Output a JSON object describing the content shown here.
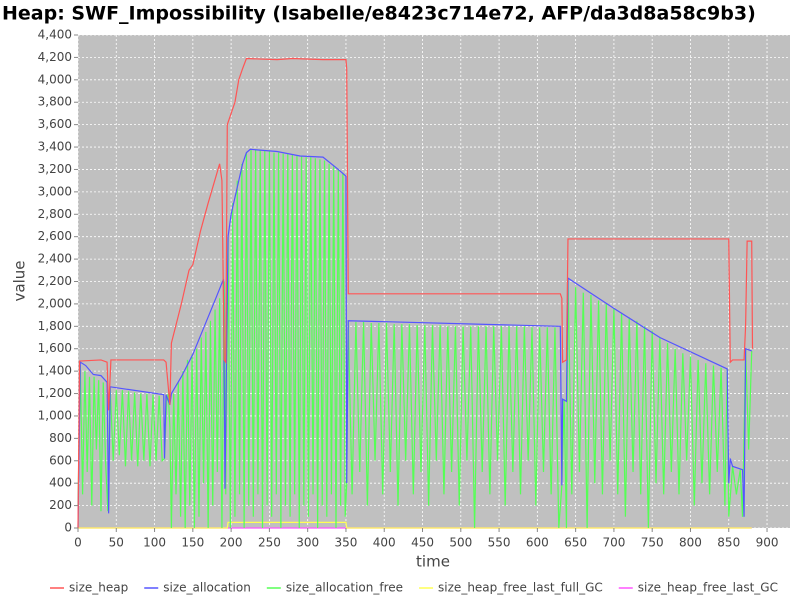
{
  "chart_data": {
    "type": "line",
    "title": "Heap: SWF_Impossibility (Isabelle/e8423c714e72, AFP/da3d8a58c9b3)",
    "x_label": "time",
    "y_label": "value",
    "xlim": [
      0,
      930
    ],
    "ylim": [
      0,
      4400
    ],
    "xticks": [
      0,
      50,
      100,
      150,
      200,
      250,
      300,
      350,
      400,
      450,
      500,
      550,
      600,
      650,
      700,
      750,
      800,
      850,
      900
    ],
    "yticks": [
      0,
      200,
      400,
      600,
      800,
      {
        "value": 1000,
        "label": "1,000"
      },
      {
        "value": 1200,
        "label": "1,200"
      },
      {
        "value": 1400,
        "label": "1,400"
      },
      {
        "value": 1600,
        "label": "1,600"
      },
      {
        "value": 1800,
        "label": "1,800"
      },
      {
        "value": 2000,
        "label": "2,000"
      },
      {
        "value": 2200,
        "label": "2,200"
      },
      {
        "value": 2400,
        "label": "2,400"
      },
      {
        "value": 2600,
        "label": "2,600"
      },
      {
        "value": 2800,
        "label": "2,800"
      },
      {
        "value": 3000,
        "label": "3,000"
      },
      {
        "value": 3200,
        "label": "3,200"
      },
      {
        "value": 3400,
        "label": "3,400"
      },
      {
        "value": 3600,
        "label": "3,600"
      },
      {
        "value": 3800,
        "label": "3,800"
      },
      {
        "value": 4000,
        "label": "4,000"
      },
      {
        "value": 4200,
        "label": "4,200"
      },
      {
        "value": 4400,
        "label": "4,400"
      }
    ],
    "grid": true,
    "legend": "bottom",
    "series": [
      {
        "name": "size_heap",
        "color": "#ff5555",
        "x": [
          0,
          2,
          30,
          38,
          40,
          43,
          112,
          115,
          120,
          122,
          135,
          145,
          150,
          160,
          170,
          185,
          188,
          191,
          193,
          195,
          200,
          205,
          210,
          215,
          220,
          260,
          280,
          320,
          350,
          351,
          353,
          630,
          632,
          633,
          638,
          640,
          850,
          852,
          855,
          870,
          872,
          874,
          880,
          881
        ],
        "values": [
          0,
          1490,
          1500,
          1480,
          1050,
          1500,
          1500,
          1480,
          1100,
          1650,
          2000,
          2300,
          2350,
          2650,
          2900,
          3250,
          3100,
          1500,
          1480,
          3600,
          3700,
          3800,
          4000,
          4100,
          4190,
          4180,
          4190,
          4180,
          4180,
          4100,
          2090,
          2090,
          2050,
          1480,
          1500,
          2580,
          2580,
          1480,
          1500,
          1500,
          1800,
          2560,
          2560,
          1600
        ]
      },
      {
        "name": "size_allocation",
        "color": "#5555ff",
        "x": [
          0,
          3,
          10,
          20,
          30,
          38,
          40,
          42,
          112,
          113,
          115,
          120,
          122,
          135,
          150,
          165,
          180,
          190,
          192,
          194,
          196,
          200,
          205,
          210,
          215,
          220,
          225,
          260,
          290,
          320,
          340,
          350,
          351,
          353,
          630,
          632,
          633,
          638,
          640,
          700,
          760,
          848,
          850,
          852,
          855,
          868,
          870,
          872,
          880
        ],
        "values": [
          0,
          1480,
          1450,
          1370,
          1360,
          1300,
          130,
          1260,
          1190,
          620,
          1190,
          1100,
          1200,
          1350,
          1550,
          1800,
          2050,
          2220,
          350,
          1500,
          2600,
          2800,
          2950,
          3100,
          3250,
          3350,
          3380,
          3360,
          3320,
          3310,
          3200,
          3140,
          400,
          1850,
          1800,
          380,
          1150,
          1130,
          2230,
          1960,
          1700,
          1420,
          400,
          620,
          550,
          520,
          100,
          1600,
          1580
        ]
      },
      {
        "name": "size_allocation_free",
        "color": "#55ff55",
        "x": [
          0,
          3,
          6,
          9,
          12,
          15,
          18,
          21,
          24,
          27,
          30,
          33,
          36,
          39,
          42,
          46,
          50,
          54,
          58,
          62,
          66,
          70,
          74,
          78,
          82,
          86,
          90,
          94,
          98,
          102,
          106,
          110,
          113,
          116,
          118,
          120,
          122,
          125,
          128,
          131,
          134,
          137,
          140,
          143,
          146,
          149,
          152,
          155,
          158,
          161,
          164,
          167,
          170,
          173,
          176,
          179,
          182,
          185,
          188,
          191,
          193,
          196,
          199,
          202,
          205,
          208,
          211,
          214,
          217,
          220,
          223,
          226,
          229,
          232,
          235,
          238,
          241,
          244,
          247,
          250,
          253,
          256,
          259,
          262,
          265,
          268,
          271,
          274,
          277,
          280,
          283,
          286,
          289,
          292,
          295,
          298,
          301,
          304,
          307,
          310,
          313,
          316,
          319,
          322,
          325,
          328,
          331,
          334,
          337,
          340,
          343,
          346,
          349,
          351,
          353,
          358,
          363,
          368,
          373,
          378,
          383,
          388,
          393,
          398,
          403,
          408,
          413,
          418,
          423,
          428,
          433,
          438,
          443,
          448,
          453,
          458,
          463,
          468,
          473,
          478,
          483,
          488,
          493,
          498,
          503,
          508,
          513,
          518,
          523,
          528,
          533,
          538,
          543,
          548,
          553,
          558,
          563,
          568,
          573,
          578,
          583,
          588,
          593,
          598,
          603,
          608,
          613,
          618,
          623,
          628,
          632,
          635,
          638,
          640,
          645,
          650,
          655,
          660,
          665,
          670,
          675,
          680,
          685,
          690,
          695,
          700,
          705,
          710,
          715,
          720,
          725,
          730,
          735,
          740,
          745,
          750,
          755,
          760,
          765,
          770,
          775,
          780,
          785,
          790,
          795,
          800,
          805,
          810,
          815,
          820,
          825,
          830,
          835,
          840,
          845,
          848,
          850,
          855,
          860,
          865,
          868,
          872,
          876,
          880
        ],
        "values": [
          200,
          1450,
          300,
          1400,
          500,
          1350,
          200,
          1350,
          700,
          1320,
          150,
          1300,
          600,
          150,
          1250,
          600,
          1230,
          650,
          1230,
          550,
          1220,
          600,
          1210,
          550,
          1200,
          600,
          1200,
          550,
          1190,
          600,
          1180,
          600,
          620,
          1150,
          1200,
          900,
          0,
          1200,
          300,
          1300,
          100,
          1400,
          0,
          1500,
          200,
          1550,
          0,
          1600,
          100,
          1700,
          400,
          1750,
          0,
          1850,
          200,
          1950,
          500,
          2050,
          0,
          2200,
          300,
          2600,
          0,
          2900,
          100,
          3100,
          300,
          3250,
          0,
          3350,
          200,
          3380,
          100,
          3380,
          300,
          3370,
          0,
          3370,
          200,
          3360,
          100,
          3350,
          300,
          3350,
          0,
          3340,
          200,
          3340,
          100,
          3330,
          300,
          3320,
          0,
          3320,
          200,
          3310,
          100,
          3310,
          300,
          3300,
          0,
          3290,
          200,
          3280,
          100,
          3250,
          300,
          3230,
          0,
          3200,
          200,
          3170,
          100,
          400,
          1850,
          300,
          1840,
          500,
          1840,
          200,
          1830,
          600,
          1830,
          300,
          1830,
          500,
          1820,
          200,
          1820,
          600,
          1820,
          300,
          1810,
          500,
          1810,
          200,
          1810,
          600,
          1810,
          300,
          1800,
          500,
          1800,
          200,
          1800,
          600,
          1800,
          0,
          1800,
          500,
          1800,
          300,
          1800,
          600,
          1800,
          200,
          1800,
          500,
          1800,
          300,
          1800,
          600,
          1790,
          200,
          1790,
          500,
          1790,
          300,
          1790,
          0,
          380,
          1150,
          0,
          2230,
          300,
          2150,
          500,
          2100,
          0,
          2080,
          400,
          2030,
          300,
          2000,
          600,
          1960,
          300,
          1920,
          100,
          1880,
          500,
          1850,
          300,
          1800,
          0,
          1760,
          400,
          1700,
          300,
          1650,
          500,
          1600,
          300,
          1560,
          600,
          1530,
          200,
          1500,
          400,
          1470,
          300,
          1450,
          500,
          1430,
          200,
          1420,
          100,
          550,
          300,
          520,
          100,
          1600,
          700,
          1580
        ]
      },
      {
        "name": "size_heap_free_last_full_GC",
        "color": "#ffff55",
        "x": [
          0,
          195,
          196,
          350,
          351,
          880
        ],
        "values": [
          0,
          0,
          50,
          50,
          0,
          0
        ]
      },
      {
        "name": "size_heap_free_last_GC",
        "color": "#ff55ff",
        "x": [
          0,
          880
        ],
        "values": [
          0,
          0
        ]
      }
    ]
  }
}
